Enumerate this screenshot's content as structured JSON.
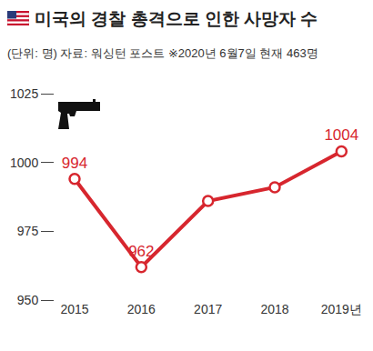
{
  "chart_data": {
    "type": "line",
    "title": "미국의 경찰 총격으로 인한 사망자 수",
    "subtitle": "(단위: 명) 자료: 워싱턴 포스트 ※2020년 6월7일 현재 463명",
    "categories": [
      "2015",
      "2016",
      "2017",
      "2018",
      "2019년"
    ],
    "values": [
      994,
      962,
      986,
      991,
      1004
    ],
    "value_labels": [
      "994",
      "962",
      null,
      null,
      "1004"
    ],
    "color": "#d7262e",
    "ylim": [
      950,
      1025
    ],
    "yticks": [
      950,
      975,
      1000,
      1025
    ],
    "grid": false,
    "marker": "circle",
    "line_style": "solid"
  }
}
